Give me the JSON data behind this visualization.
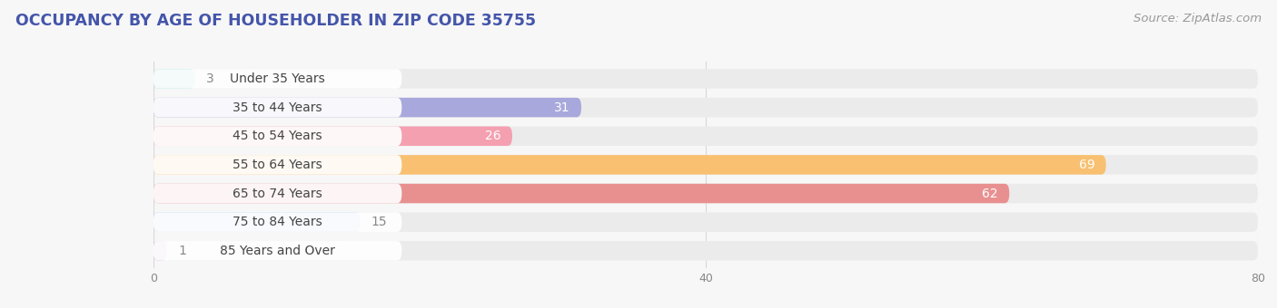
{
  "title": "OCCUPANCY BY AGE OF HOUSEHOLDER IN ZIP CODE 35755",
  "source": "Source: ZipAtlas.com",
  "categories": [
    "Under 35 Years",
    "35 to 44 Years",
    "45 to 54 Years",
    "55 to 64 Years",
    "65 to 74 Years",
    "75 to 84 Years",
    "85 Years and Over"
  ],
  "values": [
    3,
    31,
    26,
    69,
    62,
    15,
    1
  ],
  "bar_colors": [
    "#7dd4cc",
    "#a8a8dc",
    "#f4a0b0",
    "#f8c070",
    "#e89090",
    "#b0cce8",
    "#d0b0dc"
  ],
  "bar_bg_color": "#ebebeb",
  "label_bg_color": "#ffffff",
  "xlim_max": 80,
  "xticks": [
    0,
    40,
    80
  ],
  "title_fontsize": 12.5,
  "source_fontsize": 9.5,
  "label_fontsize": 10,
  "value_fontsize": 10,
  "bg_color": "#f7f7f7",
  "grid_color": "#d8d8d8",
  "title_color": "#4455aa",
  "text_color": "#444444",
  "value_color_inside": "#ffffff",
  "value_color_outside": "#888888"
}
